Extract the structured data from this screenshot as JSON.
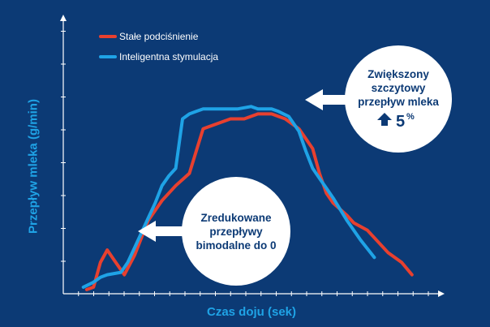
{
  "chart_data": {
    "type": "line",
    "title": "",
    "xlabel": "Czas doju (sek)",
    "ylabel": "Przepływ mleka (g/min)",
    "xlim": [
      0,
      100
    ],
    "ylim": [
      0,
      100
    ],
    "grid": false,
    "legend_position": "top-left",
    "series": [
      {
        "name": "Stałe podciśnienie",
        "color": "#e8402f",
        "x": [
          4,
          6,
          8,
          10,
          12,
          15,
          18,
          20,
          22,
          26,
          30,
          34,
          36,
          38,
          42,
          46,
          50,
          54,
          56,
          58,
          62,
          66,
          70,
          72,
          74,
          76,
          80,
          82,
          86,
          92,
          96,
          99
        ],
        "y": [
          1,
          2,
          12,
          17,
          13,
          7,
          15,
          22,
          29,
          37,
          43,
          48,
          57,
          66,
          68,
          70,
          70,
          72,
          72,
          72,
          70,
          66,
          58,
          48,
          40,
          36,
          31,
          28,
          25,
          16,
          12,
          7
        ]
      },
      {
        "name": "Inteligentna stymulacja",
        "color": "#1fa3e6",
        "x": [
          3,
          6,
          8,
          10,
          14,
          16,
          18,
          22,
          24,
          26,
          28,
          30,
          32,
          34,
          36,
          38,
          40,
          44,
          48,
          52,
          54,
          56,
          58,
          60,
          63,
          66,
          68,
          70,
          72,
          74,
          76,
          80,
          84,
          88
        ],
        "y": [
          2,
          4,
          6,
          7,
          8,
          12,
          18,
          30,
          36,
          43,
          47,
          50,
          70,
          72,
          73,
          74,
          74,
          74,
          74,
          75,
          74,
          74,
          74,
          73,
          71,
          65,
          57,
          50,
          46,
          42,
          38,
          29,
          21,
          14
        ]
      }
    ],
    "annotations": [
      {
        "lines": [
          "Zwiększony",
          "szczytowy",
          "przepływ mleka"
        ],
        "value": "5",
        "suffix": "%",
        "icon": "arrow-up-icon"
      },
      {
        "lines": [
          "Zredukowane",
          "przepływy",
          "bimodalne do 0"
        ]
      }
    ]
  }
}
